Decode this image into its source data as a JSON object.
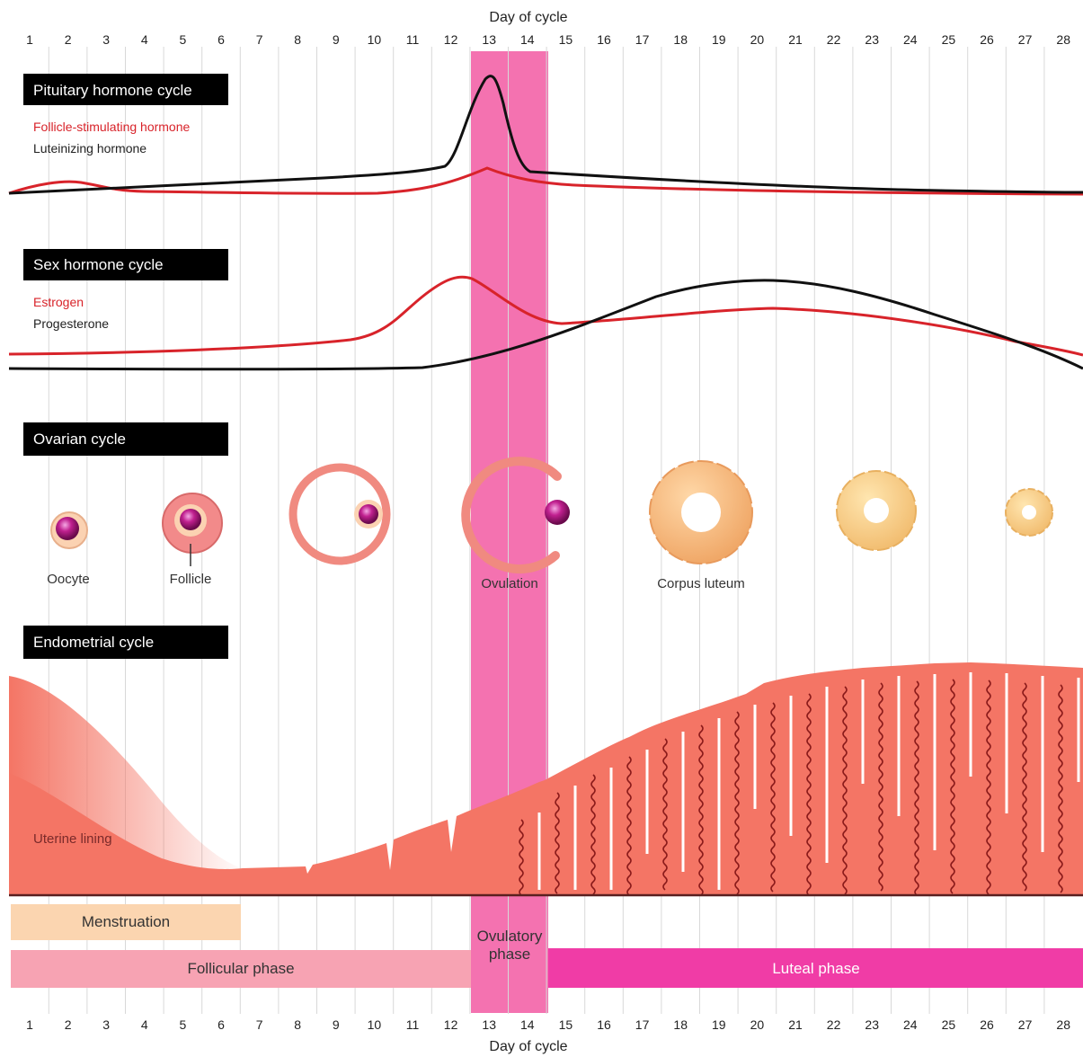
{
  "axis": {
    "title_top": "Day of cycle",
    "title_bottom": "Day of cycle",
    "days": [
      "1",
      "2",
      "3",
      "4",
      "5",
      "6",
      "7",
      "8",
      "9",
      "10",
      "11",
      "12",
      "13",
      "14",
      "15",
      "16",
      "17",
      "18",
      "19",
      "20",
      "21",
      "22",
      "23",
      "24",
      "25",
      "26",
      "27",
      "28"
    ]
  },
  "sections": {
    "pituitary": {
      "title": "Pituitary hormone cycle",
      "legend_red": "Follicle-stimulating hormone",
      "legend_black": "Luteinizing hormone"
    },
    "sex": {
      "title": "Sex hormone cycle",
      "legend_red": "Estrogen",
      "legend_black": "Progesterone"
    },
    "ovarian": {
      "title": "Ovarian cycle",
      "labels": {
        "oocyte": "Oocyte",
        "follicle": "Follicle",
        "ovulation": "Ovulation",
        "corpus_luteum": "Corpus luteum"
      }
    },
    "endometrial": {
      "title": "Endometrial cycle",
      "uterine_lining": "Uterine lining"
    }
  },
  "phases": {
    "menstruation": "Menstruation",
    "follicular": "Follicular phase",
    "ovulatory_line1": "Ovulatory",
    "ovulatory_line2": "phase",
    "luteal": "Luteal phase"
  },
  "colors": {
    "ovulation_band": "#f472b0",
    "red_curve": "#d8232a",
    "black_curve": "#111111",
    "lining": "#f47565",
    "lining_dark": "#8a1a1a",
    "menstruation": "#fbd5b0",
    "follicular": "#f7a3b3",
    "luteal": "#f03ca6",
    "title_bg": "#000000"
  }
}
